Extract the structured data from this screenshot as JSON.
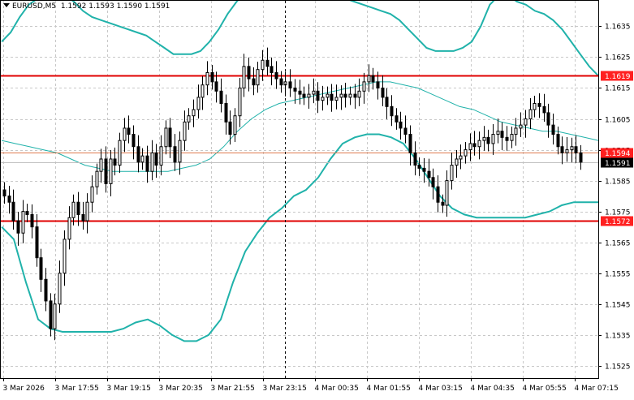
{
  "header": {
    "symbol": "EURUSD,M5",
    "ohlc": "1.1592 1.1593 1.1590 1.1591"
  },
  "colors": {
    "background": "#ffffff",
    "grid": "#c8c8c8",
    "candle": "#000000",
    "bollinger": "#20b2aa",
    "resistance": "#e00000",
    "current_line": "#e8b8a0",
    "tag_bg": "#ff2020",
    "price_tag_bg": "#000000"
  },
  "chart_data": {
    "type": "candlestick",
    "instrument": "EURUSD",
    "timeframe": "M5",
    "y_range": [
      1.1521,
      1.1643
    ],
    "y_ticks": [
      "1.1635",
      "1.1625",
      "1.1615",
      "1.1605",
      "1.1595",
      "1.1585",
      "1.1575",
      "1.1565",
      "1.1555",
      "1.1545",
      "1.1535",
      "1.1525"
    ],
    "x_ticks": [
      "3 Mar 2026",
      "3 Mar 17:55",
      "3 Mar 19:15",
      "3 Mar 20:35",
      "3 Mar 21:55",
      "3 Mar 23:15",
      "4 Mar 00:35",
      "4 Mar 01:55",
      "4 Mar 03:15",
      "4 Mar 04:35",
      "4 Mar 05:55",
      "4 Mar 07:15"
    ],
    "horizontal_levels": [
      {
        "label": "1.1619",
        "value": 1.1619,
        "kind": "resistance"
      },
      {
        "label": "1.1594",
        "value": 1.1594,
        "kind": "resistance"
      },
      {
        "label": "1.1572",
        "value": 1.1572,
        "kind": "support"
      }
    ],
    "current_price": {
      "label": "1.1591",
      "value": 1.1591
    },
    "closes": [
      1.158,
      1.1578,
      1.1572,
      1.1568,
      1.1575,
      1.1574,
      1.157,
      1.156,
      1.1553,
      1.1546,
      1.1537,
      1.1545,
      1.1555,
      1.1566,
      1.1573,
      1.1578,
      1.1574,
      1.1572,
      1.1578,
      1.1583,
      1.1588,
      1.1592,
      1.1584,
      1.1592,
      1.159,
      1.1598,
      1.1602,
      1.16,
      1.1596,
      1.1591,
      1.1593,
      1.1588,
      1.1594,
      1.159,
      1.1596,
      1.1602,
      1.1596,
      1.1591,
      1.1598,
      1.1604,
      1.1606,
      1.1608,
      1.1612,
      1.1616,
      1.162,
      1.1617,
      1.1614,
      1.161,
      1.1604,
      1.16,
      1.1606,
      1.1615,
      1.1622,
      1.1618,
      1.1616,
      1.1621,
      1.1624,
      1.1622,
      1.162,
      1.1618,
      1.1616,
      1.1617,
      1.1615,
      1.1614,
      1.1613,
      1.1612,
      1.1613,
      1.1614,
      1.1611,
      1.1612,
      1.1613,
      1.1611,
      1.1612,
      1.1613,
      1.1612,
      1.1613,
      1.1612,
      1.1614,
      1.1617,
      1.1619,
      1.1617,
      1.1615,
      1.1612,
      1.1609,
      1.1606,
      1.1604,
      1.1602,
      1.16,
      1.1594,
      1.159,
      1.1589,
      1.1588,
      1.1586,
      1.1583,
      1.1578,
      1.1577,
      1.1585,
      1.159,
      1.1592,
      1.1593,
      1.1595,
      1.1597,
      1.1596,
      1.1598,
      1.1599,
      1.1597,
      1.16,
      1.1601,
      1.1599,
      1.1598,
      1.16,
      1.1602,
      1.1603,
      1.1605,
      1.1608,
      1.161,
      1.1609,
      1.1607,
      1.1603,
      1.16,
      1.1596,
      1.1594,
      1.1595,
      1.1596,
      1.1594,
      1.1591
    ],
    "bollinger_upper": [
      1.163,
      1.1633,
      1.1638,
      1.1642,
      1.1644,
      1.1645,
      1.1646,
      1.1645,
      1.1643,
      1.164,
      1.1638,
      1.1637,
      1.1636,
      1.1635,
      1.1634,
      1.1633,
      1.1632,
      1.163,
      1.1628,
      1.1626,
      1.1626,
      1.1626,
      1.1627,
      1.163,
      1.1634,
      1.1639,
      1.1643,
      1.1646,
      1.1649,
      1.1651,
      1.1652,
      1.1652,
      1.1651,
      1.165,
      1.1649,
      1.1648,
      1.1647,
      1.1646,
      1.1644,
      1.1643,
      1.1642,
      1.1641,
      1.164,
      1.1639,
      1.1637,
      1.1634,
      1.1631,
      1.1628,
      1.1627,
      1.1627,
      1.1627,
      1.1628,
      1.163,
      1.1635,
      1.1642,
      1.1645,
      1.1645,
      1.1643,
      1.1642,
      1.164,
      1.1639,
      1.1637,
      1.1634,
      1.163,
      1.1626,
      1.1622,
      1.1619
    ],
    "bollinger_middle": [
      1.1598,
      1.1597,
      1.1596,
      1.1595,
      1.1594,
      1.1592,
      1.159,
      1.1589,
      1.1588,
      1.1588,
      1.1588,
      1.1588,
      1.1588,
      1.1589,
      1.159,
      1.1592,
      1.1596,
      1.1601,
      1.1605,
      1.1608,
      1.161,
      1.1611,
      1.1612,
      1.1613,
      1.1614,
      1.1615,
      1.1616,
      1.1617,
      1.1617,
      1.1616,
      1.1615,
      1.1613,
      1.1611,
      1.1609,
      1.1608,
      1.1606,
      1.1604,
      1.1603,
      1.1602,
      1.1601,
      1.1601,
      1.16,
      1.1599,
      1.1598
    ],
    "bollinger_lower": [
      1.157,
      1.1566,
      1.1552,
      1.154,
      1.1537,
      1.1536,
      1.1536,
      1.1536,
      1.1536,
      1.1536,
      1.1537,
      1.1539,
      1.154,
      1.1538,
      1.1535,
      1.1533,
      1.1533,
      1.1535,
      1.154,
      1.1552,
      1.1562,
      1.1568,
      1.1573,
      1.1576,
      1.158,
      1.1582,
      1.1586,
      1.1592,
      1.1597,
      1.1599,
      1.16,
      1.16,
      1.1599,
      1.1597,
      1.1592,
      1.1586,
      1.158,
      1.1576,
      1.1574,
      1.1573,
      1.1573,
      1.1573,
      1.1573,
      1.1573,
      1.1574,
      1.1575,
      1.1577,
      1.1578,
      1.1578,
      1.1578
    ],
    "crosshair_x_tick": "3 Mar 23:15"
  }
}
